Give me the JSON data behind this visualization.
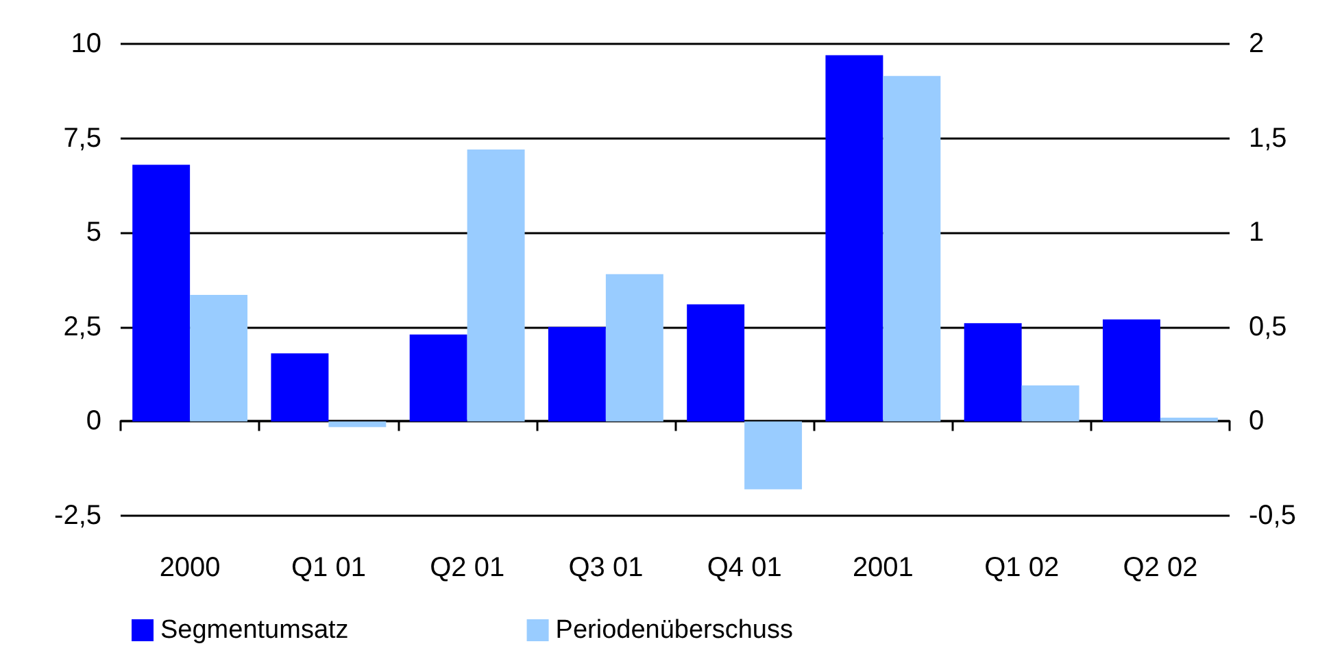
{
  "chart_data": {
    "type": "bar",
    "categories": [
      "2000",
      "Q1 01",
      "Q2 01",
      "Q3 01",
      "Q4 01",
      "2001",
      "Q1 02",
      "Q2 02"
    ],
    "series": [
      {
        "name": "Segmentumsatz",
        "color": "#0000ff",
        "values": [
          6.8,
          1.8,
          2.3,
          2.5,
          3.1,
          9.7,
          2.6,
          2.7
        ]
      },
      {
        "name": "Periodenüberschuss",
        "color": "#99ccff",
        "axis": "y2",
        "values": [
          0.67,
          -0.03,
          1.44,
          0.78,
          -0.36,
          1.83,
          0.19,
          0.02
        ]
      }
    ],
    "ylim": [
      -2.5,
      10
    ],
    "yticks": [
      {
        "value": -2.5,
        "label": "-2,5"
      },
      0,
      {
        "value": 2.5,
        "label": "2,5"
      },
      5,
      {
        "value": 7.5,
        "label": "7,5"
      },
      10
    ],
    "y2lim": [
      -0.5,
      2
    ],
    "y2ticks": [
      {
        "value": -0.5,
        "label": "-0,5"
      },
      0,
      {
        "value": 0.5,
        "label": "0,5"
      },
      1,
      {
        "value": 1.5,
        "label": "1,5"
      },
      2
    ],
    "grid": "y",
    "legend": "bottom left"
  }
}
